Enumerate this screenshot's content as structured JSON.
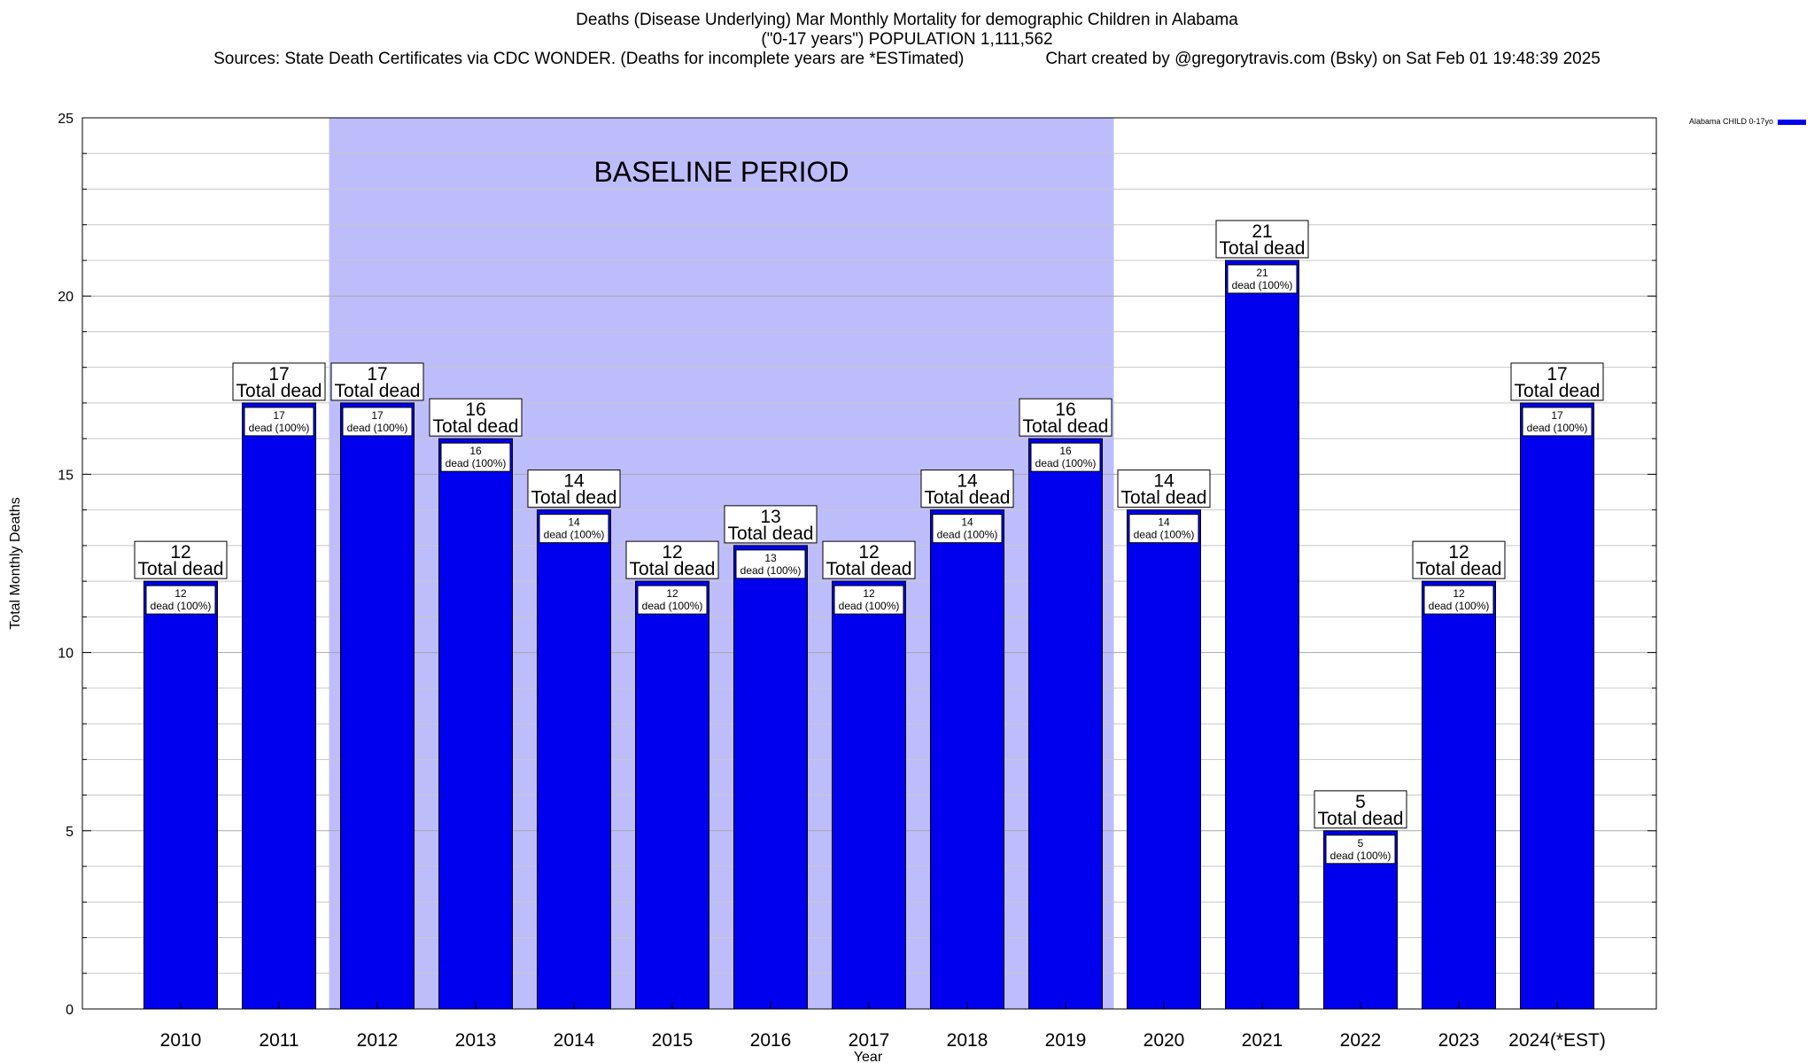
{
  "title": {
    "line1": "Deaths (Disease Underlying) Mar Monthly Mortality for demographic Children in Alabama",
    "line2": "(\"0-17 years\") POPULATION 1,111,562",
    "sources": "Sources: State Death Certificates via CDC WONDER. (Deaths for incomplete years are *ESTimated)",
    "credit": "Chart created by @gregorytravis.com (Bsky) on Sat Feb 01 19:48:39 2025"
  },
  "chart_data": {
    "type": "bar",
    "xlabel": "Year",
    "ylabel": "Total Monthly Deaths",
    "ylim": [
      0,
      25
    ],
    "yticks": [
      0,
      5,
      10,
      15,
      20,
      25
    ],
    "grid": true,
    "legend_position": "top-right",
    "categories": [
      "2010",
      "2011",
      "2012",
      "2013",
      "2014",
      "2015",
      "2016",
      "2017",
      "2018",
      "2019",
      "2020",
      "2021",
      "2022",
      "2023",
      "2024(*EST)"
    ],
    "series": [
      {
        "name": "Alabama CHILD 0-17yo",
        "color": "#0000ee",
        "values": [
          12,
          17,
          17,
          16,
          14,
          12,
          13,
          12,
          14,
          16,
          14,
          21,
          5,
          12,
          17
        ]
      }
    ],
    "total_label": "Total dead",
    "share_label": "dead (100%)",
    "baseline": {
      "label": "BASELINE PERIOD",
      "from": "2012",
      "to": "2019",
      "color": "#bdbdfb"
    }
  }
}
